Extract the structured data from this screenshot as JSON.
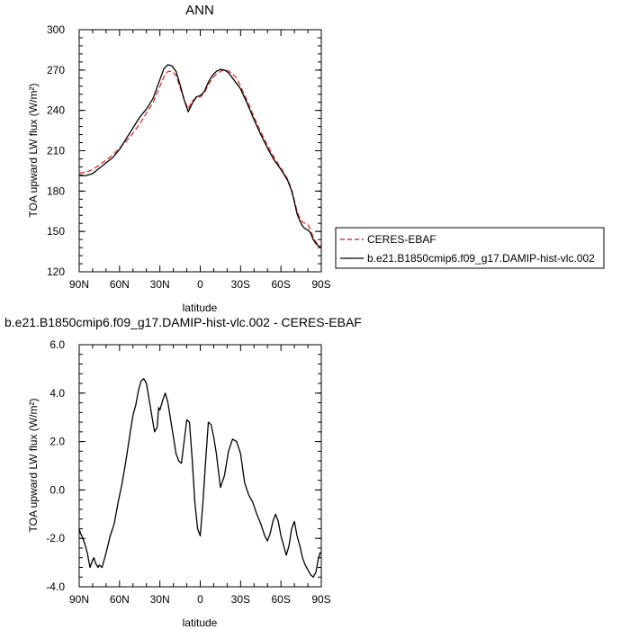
{
  "chart_data": [
    {
      "type": "line",
      "title": "ANN",
      "xlabel": "latitude",
      "ylabel": "TOA upward LW flux (W/m²)",
      "xlim": [
        90,
        -90
      ],
      "ylim": [
        120,
        300
      ],
      "x_ticks": [
        90,
        60,
        30,
        0,
        -30,
        -60,
        -90
      ],
      "x_tick_labels": [
        "90N",
        "60N",
        "30N",
        "0",
        "30S",
        "60S",
        "90S"
      ],
      "y_ticks": [
        120,
        150,
        180,
        210,
        240,
        270,
        300
      ],
      "y_tick_labels": [
        "120",
        "150",
        "180",
        "210",
        "240",
        "270",
        "300"
      ],
      "legend_position": "right",
      "series": [
        {
          "name": "CERES-EBAF",
          "color": "#e03030",
          "dash": "dashed",
          "x": [
            90,
            85,
            80,
            75,
            70,
            65,
            60,
            55,
            50,
            45,
            40,
            35,
            30,
            27,
            24,
            21,
            18,
            15,
            12,
            9,
            6,
            3,
            0,
            -3,
            -6,
            -9,
            -12,
            -15,
            -18,
            -21,
            -24,
            -27,
            -30,
            -35,
            -40,
            -45,
            -50,
            -55,
            -60,
            -65,
            -68,
            -70,
            -72,
            -74,
            -76,
            -78,
            -80,
            -82,
            -84,
            -86,
            -88,
            -90
          ],
          "y": [
            193.5,
            194,
            196,
            199.5,
            203,
            207,
            212,
            217,
            223,
            230,
            238,
            246,
            258,
            265,
            269,
            269,
            266,
            257,
            248,
            241,
            247,
            249,
            250,
            253,
            259,
            264,
            267,
            269,
            270,
            269.5,
            267,
            264,
            258,
            247,
            235,
            224,
            214,
            205,
            197,
            189,
            181,
            173,
            165,
            160,
            157,
            156,
            155,
            151,
            146,
            142,
            140,
            139
          ]
        },
        {
          "name": "b.e21.B1850cmip6.f09_g17.DAMIP-hist-vlc.002",
          "color": "#000000",
          "dash": "solid",
          "x": [
            90,
            85,
            80,
            75,
            70,
            65,
            60,
            55,
            50,
            45,
            40,
            35,
            30,
            27,
            24,
            21,
            18,
            15,
            12,
            9,
            6,
            3,
            0,
            -3,
            -6,
            -9,
            -12,
            -15,
            -18,
            -21,
            -24,
            -27,
            -30,
            -35,
            -40,
            -45,
            -50,
            -55,
            -60,
            -65,
            -68,
            -70,
            -72,
            -74,
            -76,
            -78,
            -80,
            -82,
            -84,
            -86,
            -88,
            -90
          ],
          "y": [
            191.5,
            191.5,
            193,
            197,
            201,
            205,
            211,
            219,
            227,
            235,
            241,
            249,
            263,
            271,
            274,
            273,
            269,
            259,
            248,
            239,
            245,
            250,
            251,
            254,
            261,
            266,
            269,
            270.5,
            270,
            268,
            264,
            260,
            256,
            245,
            233,
            222,
            212,
            203,
            196,
            188,
            180,
            172,
            163,
            158,
            154,
            152,
            151,
            149,
            144,
            141,
            139,
            138
          ]
        }
      ]
    },
    {
      "type": "line",
      "title": "b.e21.B1850cmip6.f09_g17.DAMIP-hist-vlc.002 - CERES-EBAF",
      "xlabel": "latitude",
      "ylabel": "TOA upward LW flux (W/m²)",
      "xlim": [
        90,
        -90
      ],
      "ylim": [
        -4.0,
        6.0
      ],
      "x_ticks": [
        90,
        60,
        30,
        0,
        -30,
        -60,
        -90
      ],
      "x_tick_labels": [
        "90N",
        "60N",
        "30N",
        "0",
        "30S",
        "60S",
        "90S"
      ],
      "y_ticks": [
        -4.0,
        -2.0,
        0.0,
        2.0,
        4.0,
        6.0
      ],
      "y_tick_labels": [
        "-4.0",
        "-2.0",
        "0.0",
        "2.0",
        "4.0",
        "6.0"
      ],
      "series": [
        {
          "color": "#000000",
          "dash": "solid",
          "x": [
            90,
            89,
            88,
            86,
            84,
            82,
            80,
            79,
            78,
            76,
            75,
            73,
            70,
            67,
            64,
            61,
            58,
            55,
            52,
            50,
            48,
            46,
            44,
            42,
            40,
            37,
            34,
            32,
            31,
            30,
            28,
            26,
            24,
            22,
            20,
            18,
            16,
            14,
            12,
            10,
            8,
            6,
            4,
            2,
            0,
            -2,
            -4,
            -6,
            -8,
            -10,
            -12,
            -15,
            -18,
            -21,
            -24,
            -27,
            -30,
            -33,
            -36,
            -39,
            -42,
            -45,
            -48,
            -50,
            -52,
            -54,
            -56,
            -58,
            -60,
            -62,
            -64,
            -66,
            -68,
            -70,
            -72,
            -73,
            -74,
            -76,
            -78,
            -80,
            -82,
            -84,
            -86,
            -88,
            -89,
            -90
          ],
          "y": [
            -1.6,
            -1.8,
            -1.9,
            -2.2,
            -2.6,
            -3.2,
            -2.9,
            -2.8,
            -3.0,
            -3.2,
            -3.1,
            -3.2,
            -2.6,
            -1.9,
            -1.4,
            -0.5,
            0.3,
            1.3,
            2.4,
            3.1,
            3.5,
            4.1,
            4.5,
            4.6,
            4.4,
            3.4,
            2.4,
            2.6,
            3.4,
            3.3,
            3.7,
            4.0,
            3.6,
            2.9,
            2.2,
            1.5,
            1.2,
            1.1,
            2.0,
            2.9,
            2.8,
            1.3,
            -0.5,
            -1.6,
            -1.9,
            -0.5,
            1.2,
            2.8,
            2.7,
            2.2,
            1.5,
            0.1,
            0.6,
            1.6,
            2.1,
            2.0,
            1.5,
            0.3,
            -0.2,
            -0.5,
            -1.0,
            -1.4,
            -1.9,
            -2.1,
            -1.8,
            -1.3,
            -1.0,
            -1.3,
            -1.9,
            -2.3,
            -2.7,
            -2.3,
            -1.6,
            -1.3,
            -1.9,
            -2.1,
            -2.3,
            -2.8,
            -3.1,
            -3.3,
            -3.5,
            -3.6,
            -3.4,
            -2.8,
            -2.6,
            -2.6
          ]
        }
      ]
    }
  ]
}
